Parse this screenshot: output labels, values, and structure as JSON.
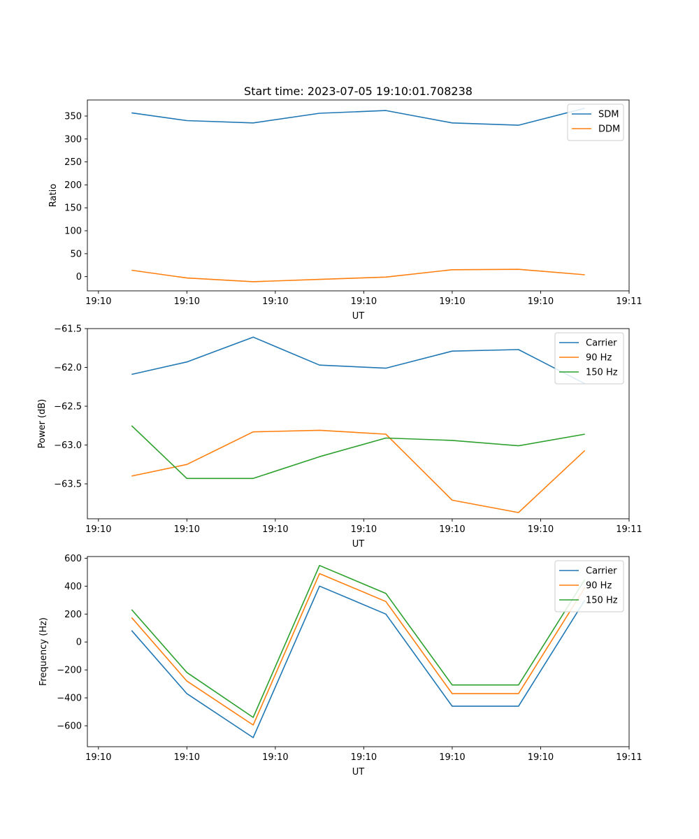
{
  "figure_title": "Start time: 2023-07-05 19:10:01.708238",
  "chart_data": [
    {
      "type": "line",
      "title": "Start time: 2023-07-05 19:10:01.708238",
      "xlabel": "UT",
      "ylabel": "Ratio",
      "xlim": [
        -0.125,
        6.0
      ],
      "ylim": [
        -31,
        385
      ],
      "x_ticks": [
        0,
        1,
        2,
        3,
        4,
        5,
        6
      ],
      "x_tick_labels": [
        "19:10",
        "19:10",
        "19:10",
        "19:10",
        "19:10",
        "19:10",
        "19:11"
      ],
      "y_ticks": [
        0,
        50,
        100,
        150,
        200,
        250,
        300,
        350
      ],
      "y_tick_labels": [
        "0",
        "50",
        "100",
        "150",
        "200",
        "250",
        "300",
        "350"
      ],
      "legend_position": "top-right",
      "x": [
        0.375,
        1.0,
        1.75,
        2.5,
        3.25,
        4.0,
        4.75,
        5.5
      ],
      "series": [
        {
          "name": "SDM",
          "color": "#1f77b4",
          "values": [
            357,
            340,
            335,
            356,
            362,
            335,
            330,
            367
          ]
        },
        {
          "name": "DDM",
          "color": "#ff7f0e",
          "values": [
            14,
            -3,
            -11,
            -6,
            -1,
            15,
            16,
            4
          ]
        }
      ]
    },
    {
      "type": "line",
      "title": "",
      "xlabel": "UT",
      "ylabel": "Power (dB)",
      "xlim": [
        -0.125,
        6.0
      ],
      "ylim": [
        -63.95,
        -61.5
      ],
      "x_ticks": [
        0,
        1,
        2,
        3,
        4,
        5,
        6
      ],
      "x_tick_labels": [
        "19:10",
        "19:10",
        "19:10",
        "19:10",
        "19:10",
        "19:10",
        "19:11"
      ],
      "y_ticks": [
        -63.5,
        -63.0,
        -62.5,
        -62.0,
        -61.5
      ],
      "y_tick_labels": [
        "−63.5",
        "−63.0",
        "−62.5",
        "−62.0",
        "−61.5"
      ],
      "legend_position": "top-right",
      "x": [
        0.375,
        1.0,
        1.75,
        2.5,
        3.25,
        4.0,
        4.75,
        5.5
      ],
      "series": [
        {
          "name": "Carrier",
          "color": "#1f77b4",
          "values": [
            -62.09,
            -61.93,
            -61.61,
            -61.97,
            -62.01,
            -61.79,
            -61.77,
            -62.21
          ]
        },
        {
          "name": "90 Hz",
          "color": "#ff7f0e",
          "values": [
            -63.4,
            -63.25,
            -62.83,
            -62.81,
            -62.86,
            -63.71,
            -63.87,
            -63.07
          ]
        },
        {
          "name": "150 Hz",
          "color": "#2ca02c",
          "values": [
            -62.75,
            -63.43,
            -63.43,
            -63.15,
            -62.91,
            -62.94,
            -63.01,
            -62.86
          ]
        }
      ]
    },
    {
      "type": "line",
      "title": "",
      "xlabel": "UT",
      "ylabel": "Frequency (Hz)",
      "xlim": [
        -0.125,
        6.0
      ],
      "ylim": [
        -750,
        612
      ],
      "x_ticks": [
        0,
        1,
        2,
        3,
        4,
        5,
        6
      ],
      "x_tick_labels": [
        "19:10",
        "19:10",
        "19:10",
        "19:10",
        "19:10",
        "19:10",
        "19:11"
      ],
      "y_ticks": [
        -600,
        -400,
        -200,
        0,
        200,
        400,
        600
      ],
      "y_tick_labels": [
        "−600",
        "−400",
        "−200",
        "0",
        "200",
        "400",
        "600"
      ],
      "legend_position": "top-right",
      "x": [
        0.375,
        1.0,
        1.75,
        2.5,
        3.25,
        4.0,
        4.75,
        5.5
      ],
      "series": [
        {
          "name": "Carrier",
          "color": "#1f77b4",
          "values": [
            82,
            -370,
            -685,
            400,
            200,
            -460,
            -460,
            300
          ]
        },
        {
          "name": "90 Hz",
          "color": "#ff7f0e",
          "values": [
            175,
            -280,
            -595,
            490,
            290,
            -370,
            -370,
            390
          ]
        },
        {
          "name": "150 Hz",
          "color": "#2ca02c",
          "values": [
            232,
            -218,
            -540,
            548,
            348,
            -308,
            -308,
            448
          ]
        }
      ]
    }
  ]
}
